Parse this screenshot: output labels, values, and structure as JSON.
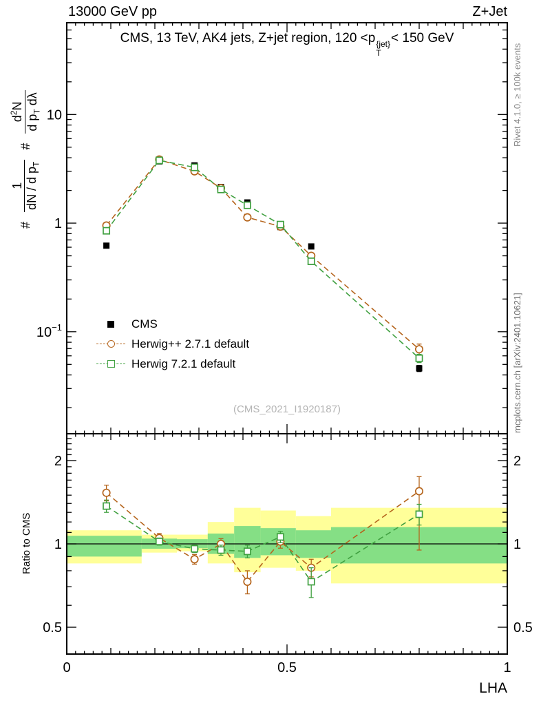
{
  "header": {
    "left": "13000 GeV pp",
    "right": "Z+Jet"
  },
  "panel_title": {
    "prefix": "CMS, 13 TeV, AK4 jets, Z+jet region, 120 <p",
    "sup": "{jet}",
    "sub": "T",
    "suffix": "< 150 GeV"
  },
  "ylabel": {
    "hash1": "#",
    "frac1_num": "1",
    "frac1_den_pre": "dN / d p",
    "frac1_den_sub": "T",
    "hash2": "#",
    "frac2_num_pre": "d",
    "frac2_num_sup": "2",
    "frac2_num_post": "N",
    "frac2_den_pre": "d p",
    "frac2_den_sub": "T",
    "frac2_den_post": " dλ"
  },
  "ratio_ylabel": "Ratio to CMS",
  "right_texts": {
    "rivet": "Rivet 4.1.0, ≥ 100k events",
    "mcplots": "mcplots.cern.ch [arXiv:2401.10621]"
  },
  "watermark": "(CMS_2021_I1920187)",
  "legend": [
    {
      "label": "CMS",
      "marker": "filled-square",
      "color": "#000000"
    },
    {
      "label": "Herwig++ 2.7.1 default",
      "marker": "open-circle",
      "color": "#b5651d"
    },
    {
      "label": "Herwig 7.2.1 default",
      "marker": "open-square",
      "color": "#40a040"
    }
  ],
  "chart_data": {
    "type": "line",
    "title": "CMS, 13 TeV, AK4 jets, Z+jet region, 120 <pT{jet}< 150 GeV",
    "axes": {
      "xlabel": "LHA",
      "xlim": [
        0,
        1
      ],
      "ylim_main": [
        0.0115,
        70
      ],
      "ylim_ratio": [
        0.4,
        2.5
      ],
      "y_scale": "log",
      "xticks": [
        {
          "v": 0,
          "label": "0"
        },
        {
          "v": 0.5,
          "label": "0.5"
        },
        {
          "v": 1,
          "label": "1"
        }
      ],
      "yticks_main": [
        {
          "v": 10,
          "label": "10"
        },
        {
          "v": 1,
          "label": "1"
        },
        {
          "v": 0.1,
          "label": "10",
          "sup": "−1"
        }
      ],
      "yticks_ratio": [
        {
          "v": 2,
          "label": "2"
        },
        {
          "v": 1,
          "label": "1"
        },
        {
          "v": 0.5,
          "label": "0.5"
        }
      ]
    },
    "x": [
      0.09,
      0.21,
      0.29,
      0.35,
      0.41,
      0.485,
      0.555,
      0.8
    ],
    "series": [
      {
        "name": "CMS",
        "color": "#000000",
        "marker": "filled-square",
        "line": false,
        "values": [
          0.62,
          3.7,
          3.4,
          2.15,
          1.55,
          0.92,
          0.61,
          0.046
        ],
        "yerr": [
          0.02,
          0.06,
          0.06,
          0.04,
          0.04,
          0.03,
          0.02,
          0.003
        ]
      },
      {
        "name": "Herwig++ 2.7.1 default",
        "color": "#b5651d",
        "marker": "open-circle",
        "values": [
          0.95,
          3.85,
          3.0,
          2.1,
          1.13,
          0.93,
          0.5,
          0.069
        ],
        "yerr": [
          0.05,
          0.07,
          0.06,
          0.05,
          0.05,
          0.04,
          0.025,
          0.008
        ]
      },
      {
        "name": "Herwig 7.2.1 default",
        "color": "#40a040",
        "marker": "open-square",
        "values": [
          0.85,
          3.78,
          3.26,
          2.04,
          1.46,
          0.97,
          0.445,
          0.057
        ],
        "yerr": [
          0.04,
          0.06,
          0.05,
          0.04,
          0.04,
          0.03,
          0.02,
          0.005
        ]
      }
    ],
    "ratio": {
      "reference": "CMS",
      "series": [
        {
          "name": "Herwig++ 2.7.1 default",
          "color": "#b5651d",
          "marker": "open-circle",
          "values": [
            1.53,
            1.05,
            0.88,
            1.0,
            0.73,
            1.02,
            0.82,
            1.55
          ],
          "yerr_lo": [
            0.1,
            0.04,
            0.035,
            0.045,
            0.07,
            0.055,
            0.06,
            0.6
          ],
          "yerr_hi": [
            0.1,
            0.04,
            0.035,
            0.045,
            0.07,
            0.055,
            0.06,
            0.2
          ]
        },
        {
          "name": "Herwig 7.2.1 default",
          "color": "#40a040",
          "marker": "open-square",
          "values": [
            1.37,
            1.02,
            0.96,
            0.95,
            0.94,
            1.06,
            0.73,
            1.28
          ],
          "yerr_lo": [
            0.07,
            0.03,
            0.03,
            0.04,
            0.05,
            0.05,
            0.09,
            0.11
          ],
          "yerr_hi": [
            0.07,
            0.03,
            0.03,
            0.04,
            0.05,
            0.05,
            0.09,
            0.11
          ]
        }
      ],
      "bands": {
        "yellow_color": "#ffff99",
        "green_color": "#85df85",
        "yellow": [
          [
            0.0,
            0.17,
            0.85,
            1.12
          ],
          [
            0.17,
            0.25,
            0.93,
            1.08
          ],
          [
            0.25,
            0.32,
            0.94,
            1.08
          ],
          [
            0.32,
            0.38,
            0.85,
            1.2
          ],
          [
            0.38,
            0.44,
            0.79,
            1.35
          ],
          [
            0.44,
            0.52,
            0.82,
            1.32
          ],
          [
            0.52,
            0.6,
            0.8,
            1.26
          ],
          [
            0.6,
            1.0,
            0.72,
            1.35
          ]
        ],
        "green": [
          [
            0.0,
            0.17,
            0.9,
            1.07
          ],
          [
            0.17,
            0.25,
            0.96,
            1.045
          ],
          [
            0.25,
            0.32,
            0.965,
            1.04
          ],
          [
            0.32,
            0.38,
            0.92,
            1.09
          ],
          [
            0.38,
            0.44,
            0.89,
            1.16
          ],
          [
            0.44,
            0.52,
            0.91,
            1.14
          ],
          [
            0.52,
            0.6,
            0.89,
            1.12
          ],
          [
            0.6,
            1.0,
            0.85,
            1.15
          ]
        ]
      }
    }
  }
}
